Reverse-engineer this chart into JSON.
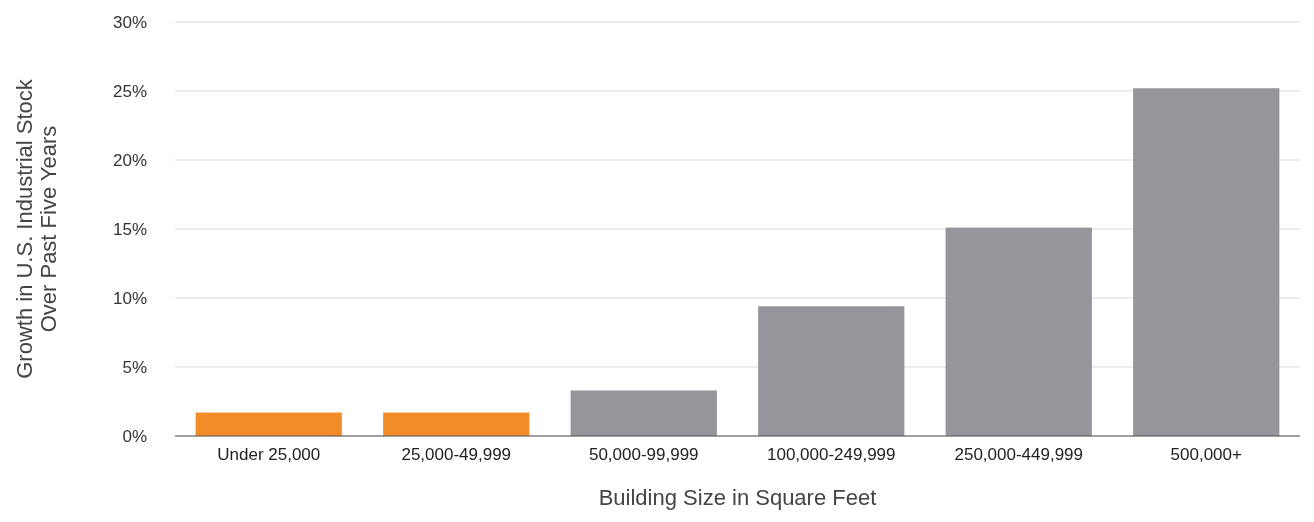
{
  "chart_data": {
    "type": "bar",
    "xlabel": "Building Size in Square Feet",
    "ylabel": "Growth in U.S. Industrial Stock Over Past Five Years",
    "categories": [
      "Under 25,000",
      "25,000-49,999",
      "50,000-99,999",
      "100,000-249,999",
      "250,000-449,999",
      "500,000+"
    ],
    "values": [
      1.7,
      1.7,
      3.3,
      9.4,
      15.1,
      25.2
    ],
    "colors": [
      "#f28c28",
      "#f28c28",
      "#96959c",
      "#96959c",
      "#96959c",
      "#96959c"
    ],
    "ylim": [
      0,
      30
    ],
    "yticks": [
      {
        "value": 0,
        "label": "0%"
      },
      {
        "value": 5,
        "label": "5%"
      },
      {
        "value": 10,
        "label": "10%"
      },
      {
        "value": 15,
        "label": "15%"
      },
      {
        "value": 20,
        "label": "20%"
      },
      {
        "value": 25,
        "label": "25%"
      },
      {
        "value": 30,
        "label": "30%"
      }
    ],
    "grid": "y"
  }
}
